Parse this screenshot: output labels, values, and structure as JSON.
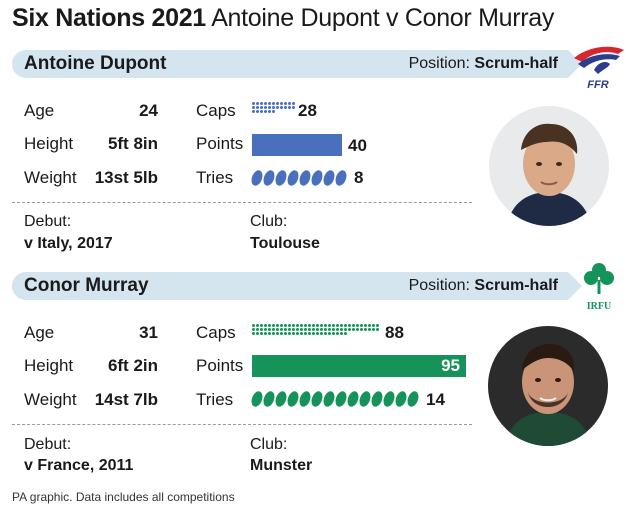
{
  "title": {
    "bold": "Six Nations 2021",
    "rest": "Antoine Dupont v Conor Murray"
  },
  "colors": {
    "dupont": "#4a6fbd",
    "murray": "#16935a",
    "banner": "#d4e5ef"
  },
  "players": [
    {
      "name": "Antoine Dupont",
      "position_label": "Position:",
      "position": "Scrum-half",
      "union_logo": "FFR",
      "stats": {
        "age_label": "Age",
        "age": "24",
        "height_label": "Height",
        "height": "5ft 8in",
        "weight_label": "Weight",
        "weight": "13st 5lb"
      },
      "caps_label": "Caps",
      "caps": 28,
      "points_label": "Points",
      "points": 40,
      "tries_label": "Tries",
      "tries": 8,
      "debut_label": "Debut:",
      "debut": "v Italy, 2017",
      "club_label": "Club:",
      "club": "Toulouse",
      "photo_icon": "player-photo"
    },
    {
      "name": "Conor Murray",
      "position_label": "Position:",
      "position": "Scrum-half",
      "union_logo": "IRFU",
      "stats": {
        "age_label": "Age",
        "age": "31",
        "height_label": "Height",
        "height": "6ft 2in",
        "weight_label": "Weight",
        "weight": "14st 7lb"
      },
      "caps_label": "Caps",
      "caps": 88,
      "points_label": "Points",
      "points": 95,
      "tries_label": "Tries",
      "tries": 14,
      "debut_label": "Debut:",
      "debut": "v France, 2011",
      "club_label": "Club:",
      "club": "Munster",
      "photo_icon": "player-photo"
    }
  ],
  "footer": "PA graphic. Data includes all competitions"
}
